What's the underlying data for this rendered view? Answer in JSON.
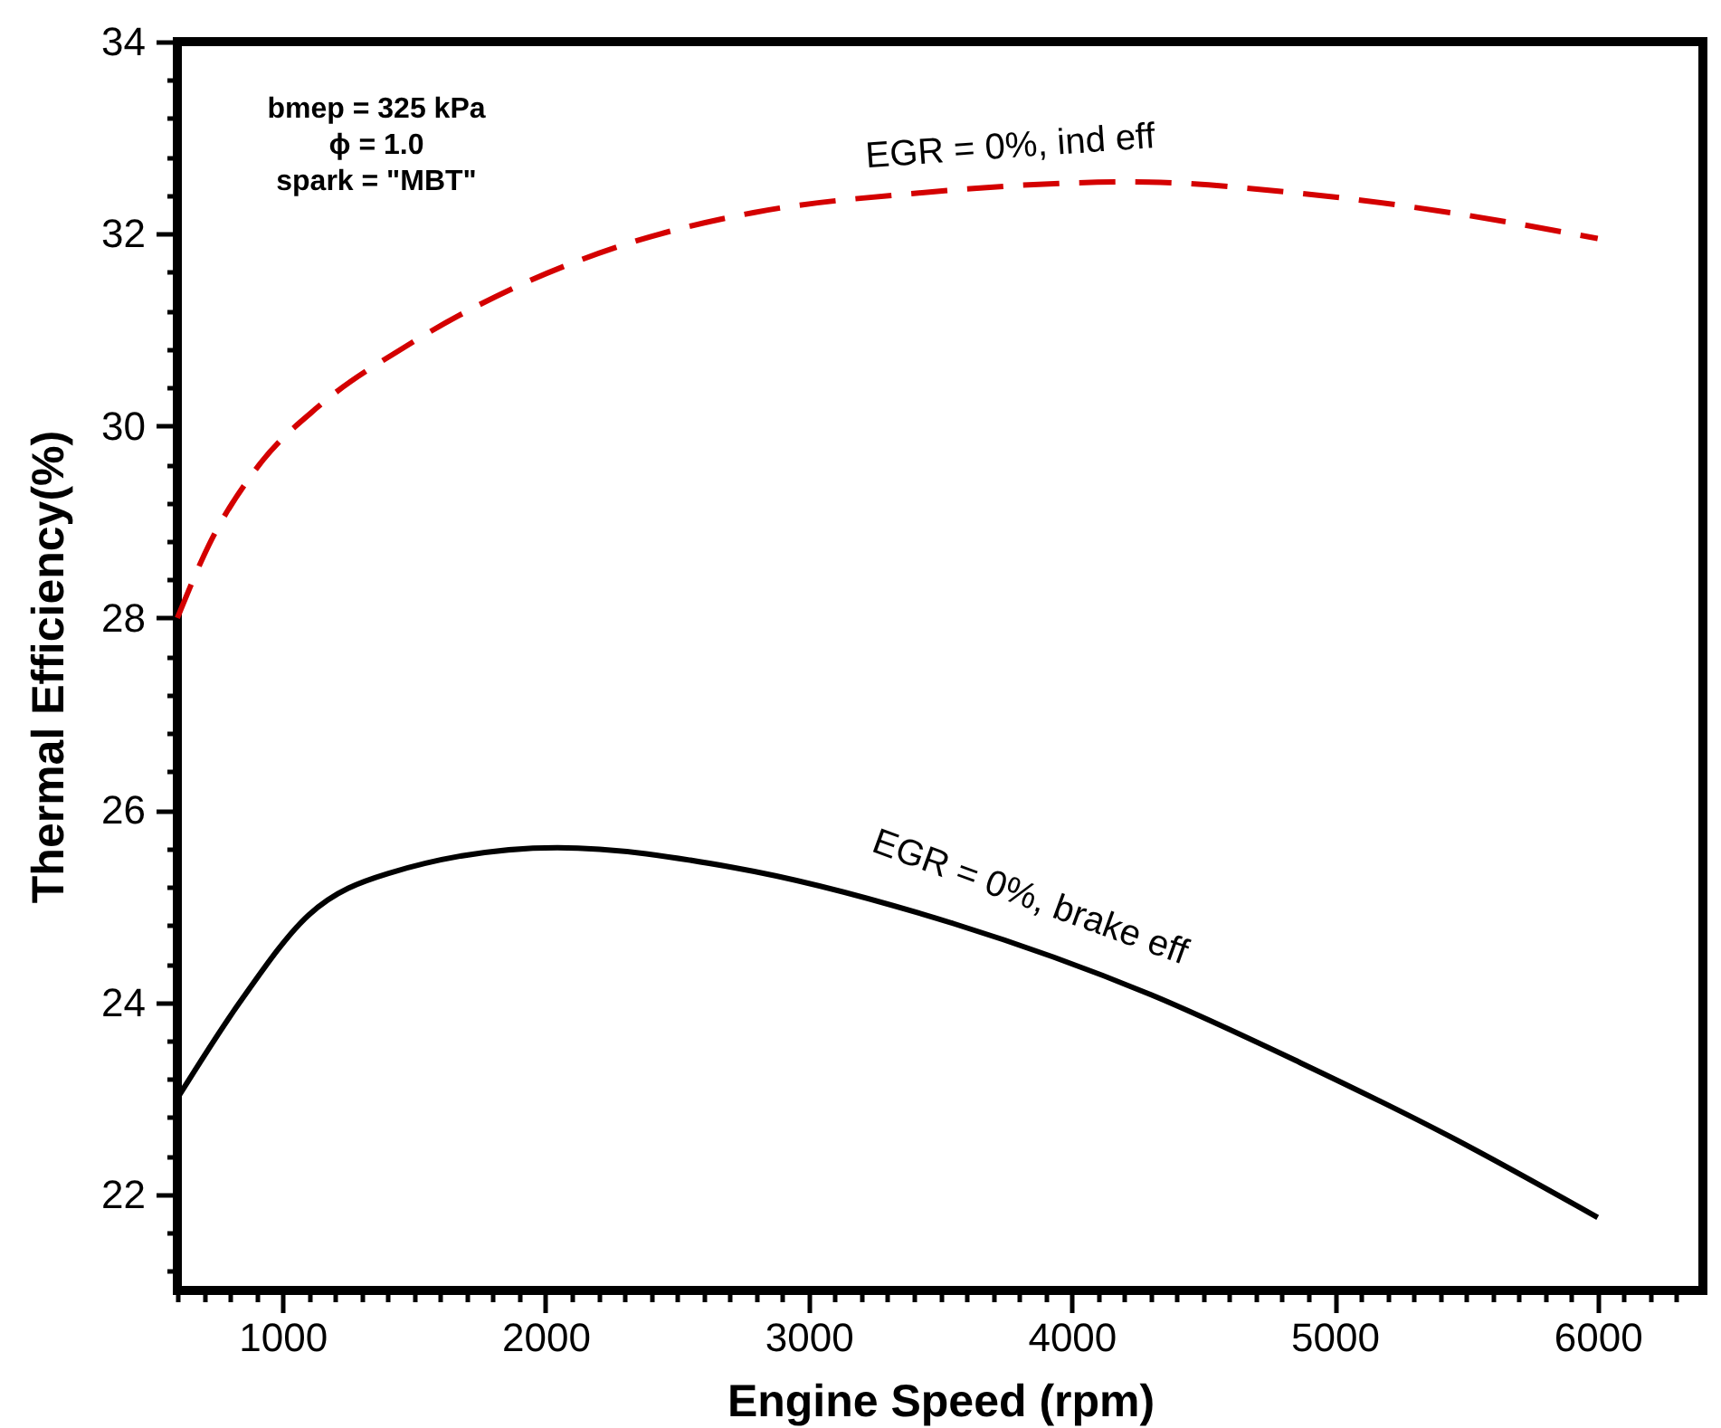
{
  "chart_data": {
    "type": "line",
    "xlabel": "Engine Speed (rpm)",
    "ylabel": "Thermal Efficiency(%)",
    "xlim": [
      600,
      6400
    ],
    "ylim": [
      21,
      34
    ],
    "xticks": [
      {
        "value": 600,
        "label": null
      },
      {
        "value": 700,
        "label": null
      },
      {
        "value": 800,
        "label": null
      },
      {
        "value": 900,
        "label": null
      },
      1000,
      {
        "value": 1100,
        "label": null
      },
      {
        "value": 1200,
        "label": null
      },
      {
        "value": 1300,
        "label": null
      },
      {
        "value": 1400,
        "label": null
      },
      {
        "value": 1500,
        "label": null
      },
      {
        "value": 1600,
        "label": null
      },
      {
        "value": 1700,
        "label": null
      },
      {
        "value": 1800,
        "label": null
      },
      {
        "value": 1900,
        "label": null
      },
      2000,
      {
        "value": 2100,
        "label": null
      },
      {
        "value": 2200,
        "label": null
      },
      {
        "value": 2300,
        "label": null
      },
      {
        "value": 2400,
        "label": null
      },
      {
        "value": 2500,
        "label": null
      },
      {
        "value": 2600,
        "label": null
      },
      {
        "value": 2700,
        "label": null
      },
      {
        "value": 2800,
        "label": null
      },
      {
        "value": 2900,
        "label": null
      },
      3000,
      {
        "value": 3100,
        "label": null
      },
      {
        "value": 3200,
        "label": null
      },
      {
        "value": 3300,
        "label": null
      },
      {
        "value": 3400,
        "label": null
      },
      {
        "value": 3500,
        "label": null
      },
      {
        "value": 3600,
        "label": null
      },
      {
        "value": 3700,
        "label": null
      },
      {
        "value": 3800,
        "label": null
      },
      {
        "value": 3900,
        "label": null
      },
      4000,
      {
        "value": 4100,
        "label": null
      },
      {
        "value": 4200,
        "label": null
      },
      {
        "value": 4300,
        "label": null
      },
      {
        "value": 4400,
        "label": null
      },
      {
        "value": 4500,
        "label": null
      },
      {
        "value": 4600,
        "label": null
      },
      {
        "value": 4700,
        "label": null
      },
      {
        "value": 4800,
        "label": null
      },
      {
        "value": 4900,
        "label": null
      },
      5000,
      {
        "value": 5100,
        "label": null
      },
      {
        "value": 5200,
        "label": null
      },
      {
        "value": 5300,
        "label": null
      },
      {
        "value": 5400,
        "label": null
      },
      {
        "value": 5500,
        "label": null
      },
      {
        "value": 5600,
        "label": null
      },
      {
        "value": 5700,
        "label": null
      },
      {
        "value": 5800,
        "label": null
      },
      {
        "value": 5900,
        "label": null
      },
      6000,
      {
        "value": 6100,
        "label": null
      },
      {
        "value": 6200,
        "label": null
      },
      {
        "value": 6300,
        "label": null
      }
    ],
    "yticks": [
      {
        "value": 21.2,
        "label": null
      },
      {
        "value": 21.6,
        "label": null
      },
      22,
      {
        "value": 22.4,
        "label": null
      },
      {
        "value": 22.8,
        "label": null
      },
      {
        "value": 23.2,
        "label": null
      },
      {
        "value": 23.6,
        "label": null
      },
      24,
      {
        "value": 24.4,
        "label": null
      },
      {
        "value": 24.8,
        "label": null
      },
      {
        "value": 25.2,
        "label": null
      },
      {
        "value": 25.6,
        "label": null
      },
      26,
      {
        "value": 26.4,
        "label": null
      },
      {
        "value": 26.8,
        "label": null
      },
      {
        "value": 27.2,
        "label": null
      },
      {
        "value": 27.6,
        "label": null
      },
      28,
      {
        "value": 28.4,
        "label": null
      },
      {
        "value": 28.8,
        "label": null
      },
      {
        "value": 29.2,
        "label": null
      },
      {
        "value": 29.6,
        "label": null
      },
      30,
      {
        "value": 30.4,
        "label": null
      },
      {
        "value": 30.8,
        "label": null
      },
      {
        "value": 31.2,
        "label": null
      },
      {
        "value": 31.6,
        "label": null
      },
      32,
      {
        "value": 32.4,
        "label": null
      },
      {
        "value": 32.8,
        "label": null
      },
      {
        "value": 33.2,
        "label": null
      },
      {
        "value": 33.6,
        "label": null
      },
      34
    ],
    "grid": false,
    "legend": false,
    "marker": "none",
    "series": [
      {
        "name": "EGR = 0%, ind eff",
        "color": "#d40000",
        "line_style": "dashed",
        "x": [
          600,
          720,
          910,
          1140,
          1470,
          1890,
          2270,
          2790,
          3400,
          4230,
          4870,
          5440,
          6000
        ],
        "values": [
          28.0,
          28.76,
          29.59,
          30.21,
          30.83,
          31.45,
          31.86,
          32.22,
          32.42,
          32.54,
          32.42,
          32.22,
          31.95
        ]
      },
      {
        "name": "EGR = 0%, brake eff",
        "color": "#000000",
        "line_style": "solid",
        "x": [
          600,
          835,
          1100,
          1400,
          2045,
          2720,
          3550,
          4300,
          4870,
          5440,
          6000
        ],
        "values": [
          23.0,
          23.99,
          24.91,
          25.34,
          25.61,
          25.4,
          24.82,
          24.08,
          23.37,
          22.6,
          21.76
        ]
      }
    ],
    "annotations": [
      "bmep = 325 kPa",
      "ϕ = 1.0",
      "spark = \"MBT\""
    ]
  }
}
